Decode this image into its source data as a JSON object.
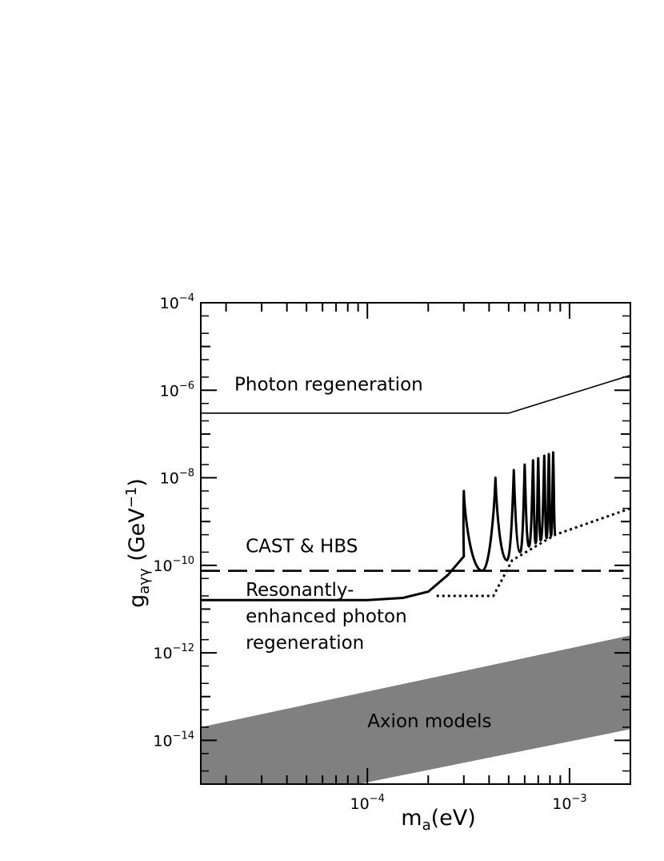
{
  "chart_data": {
    "type": "line",
    "title": "",
    "xlabel": {
      "main": "m",
      "sub": "a",
      "unit": "(eV)"
    },
    "ylabel": {
      "main": "g",
      "sub": "aγγ",
      "unit_pre": "(GeV",
      "unit_exp": "−1",
      "unit_post": ")"
    },
    "x_scale": "log",
    "y_scale": "log",
    "xlim": [
      1.5e-05,
      0.002
    ],
    "ylim": [
      1e-15,
      0.0001
    ],
    "x_ticks": [
      {
        "value": 0.0001,
        "base": "10",
        "exp": "−4"
      },
      {
        "value": 0.001,
        "base": "10",
        "exp": "−3"
      }
    ],
    "y_ticks": [
      {
        "value": 0.0001,
        "base": "10",
        "exp": "−4"
      },
      {
        "value": 1e-06,
        "base": "10",
        "exp": "−6"
      },
      {
        "value": 1e-08,
        "base": "10",
        "exp": "−8"
      },
      {
        "value": 1e-10,
        "base": "10",
        "exp": "−10"
      },
      {
        "value": 1e-12,
        "base": "10",
        "exp": "−12"
      },
      {
        "value": 1e-14,
        "base": "10",
        "exp": "−14"
      }
    ],
    "grid": false,
    "series": [
      {
        "style": "thin-solid",
        "x": [
          1.5e-05,
          0.0005,
          0.002
        ],
        "y": [
          3e-07,
          3e-07,
          2.2e-06
        ]
      },
      {
        "style": "dashed",
        "x": [
          1.5e-05,
          0.00185
        ],
        "y": [
          7.5e-11,
          7.5e-11
        ]
      },
      {
        "style": "dotted",
        "x": [
          0.00022,
          0.00042,
          0.00052,
          0.00085,
          0.002
        ],
        "y": [
          2e-11,
          2e-11,
          1.3e-10,
          5e-10,
          2e-09
        ]
      },
      {
        "style": "thick-solid",
        "baseline": {
          "x": [
            1.5e-05,
            0.0001,
            0.00015,
            0.0002,
            0.00025,
            0.0003
          ],
          "y": [
            1.6e-11,
            1.6e-11,
            1.8e-11,
            2.5e-11,
            6e-11,
            1.6e-10
          ]
        },
        "peaks": [
          {
            "x": 0.0003,
            "y": 5e-09
          },
          {
            "x": 0.00043,
            "y": 1e-08
          },
          {
            "x": 0.00053,
            "y": 1.5e-08
          },
          {
            "x": 0.0006,
            "y": 2e-08
          },
          {
            "x": 0.00066,
            "y": 2.5e-08
          },
          {
            "x": 0.0007,
            "y": 2.8e-08
          },
          {
            "x": 0.00075,
            "y": 3.2e-08
          },
          {
            "x": 0.00079,
            "y": 3.5e-08
          },
          {
            "x": 0.00083,
            "y": 3.8e-08
          }
        ],
        "troughs": [
          {
            "x": 0.00037,
            "y": 7.5e-11
          },
          {
            "x": 0.00049,
            "y": 1.3e-10
          },
          {
            "x": 0.00057,
            "y": 2e-10
          },
          {
            "x": 0.00063,
            "y": 2.7e-10
          },
          {
            "x": 0.00068,
            "y": 3.2e-10
          },
          {
            "x": 0.00072,
            "y": 3.7e-10
          },
          {
            "x": 0.00077,
            "y": 4.2e-10
          },
          {
            "x": 0.00081,
            "y": 4.7e-10
          },
          {
            "x": 0.00085,
            "y": 5e-10
          }
        ]
      }
    ],
    "band": {
      "color": "#808080",
      "upper": {
        "x": [
          1.5e-05,
          0.002
        ],
        "y": [
          2e-14,
          2.5e-12
        ]
      },
      "lower": {
        "x": [
          9e-05,
          0.002
        ],
        "y": [
          1e-15,
          1.8e-14
        ]
      }
    },
    "annotations": [
      {
        "text": "Photon regeneration",
        "x": 2.2e-05,
        "y": 1e-06
      },
      {
        "text": "CAST & HBS",
        "x": 2.5e-05,
        "y": 2e-10
      },
      {
        "text": "Resonantly-",
        "x": 2.5e-05,
        "y": 2e-11
      },
      {
        "text": "enhanced photon",
        "x": 2.5e-05,
        "y": 5e-12
      },
      {
        "text": "regeneration",
        "x": 2.5e-05,
        "y": 1.25e-12
      },
      {
        "text": "Axion models",
        "x": 0.0001,
        "y": 2e-14
      }
    ]
  }
}
